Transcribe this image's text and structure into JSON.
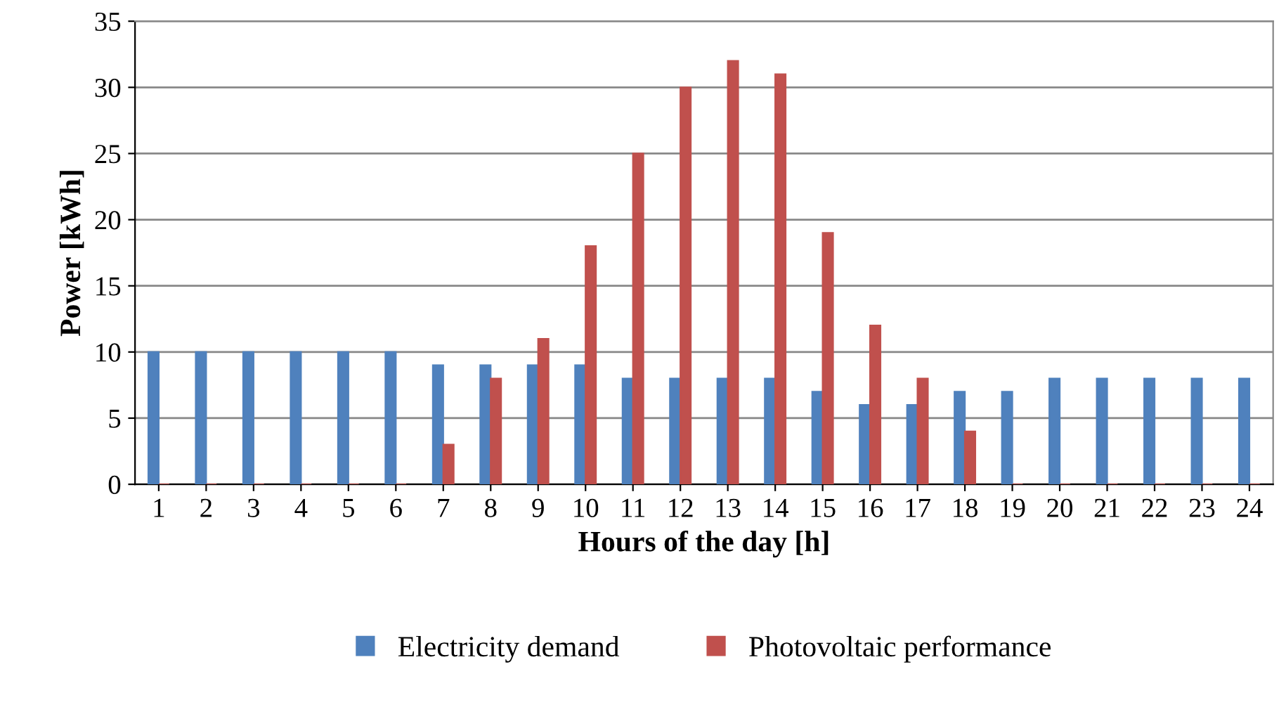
{
  "chart_data": {
    "type": "bar",
    "xlabel": "Hours of the day [h]",
    "ylabel": "Power [kWh]",
    "categories": [
      "1",
      "2",
      "3",
      "4",
      "5",
      "6",
      "7",
      "8",
      "9",
      "10",
      "11",
      "12",
      "13",
      "14",
      "15",
      "16",
      "17",
      "18",
      "19",
      "20",
      "21",
      "22",
      "23",
      "24"
    ],
    "series": [
      {
        "name": "Electricity demand",
        "color": "#4f81bd",
        "values": [
          10,
          10,
          10,
          10,
          10,
          10,
          9,
          9,
          9,
          9,
          8,
          8,
          8,
          8,
          7,
          6,
          6,
          7,
          7,
          8,
          8,
          8,
          8,
          8
        ]
      },
      {
        "name": "Photovoltaic performance",
        "color": "#c0504d",
        "values": [
          0,
          0,
          0,
          0,
          0,
          0,
          3,
          8,
          11,
          18,
          25,
          30,
          32,
          31,
          19,
          12,
          8,
          4,
          0,
          0,
          0,
          0,
          0,
          0
        ]
      }
    ],
    "ylim": [
      0,
      35
    ],
    "yticks": [
      0,
      5,
      10,
      15,
      20,
      25,
      30,
      35
    ],
    "grid": "y",
    "legend": "bottom"
  }
}
